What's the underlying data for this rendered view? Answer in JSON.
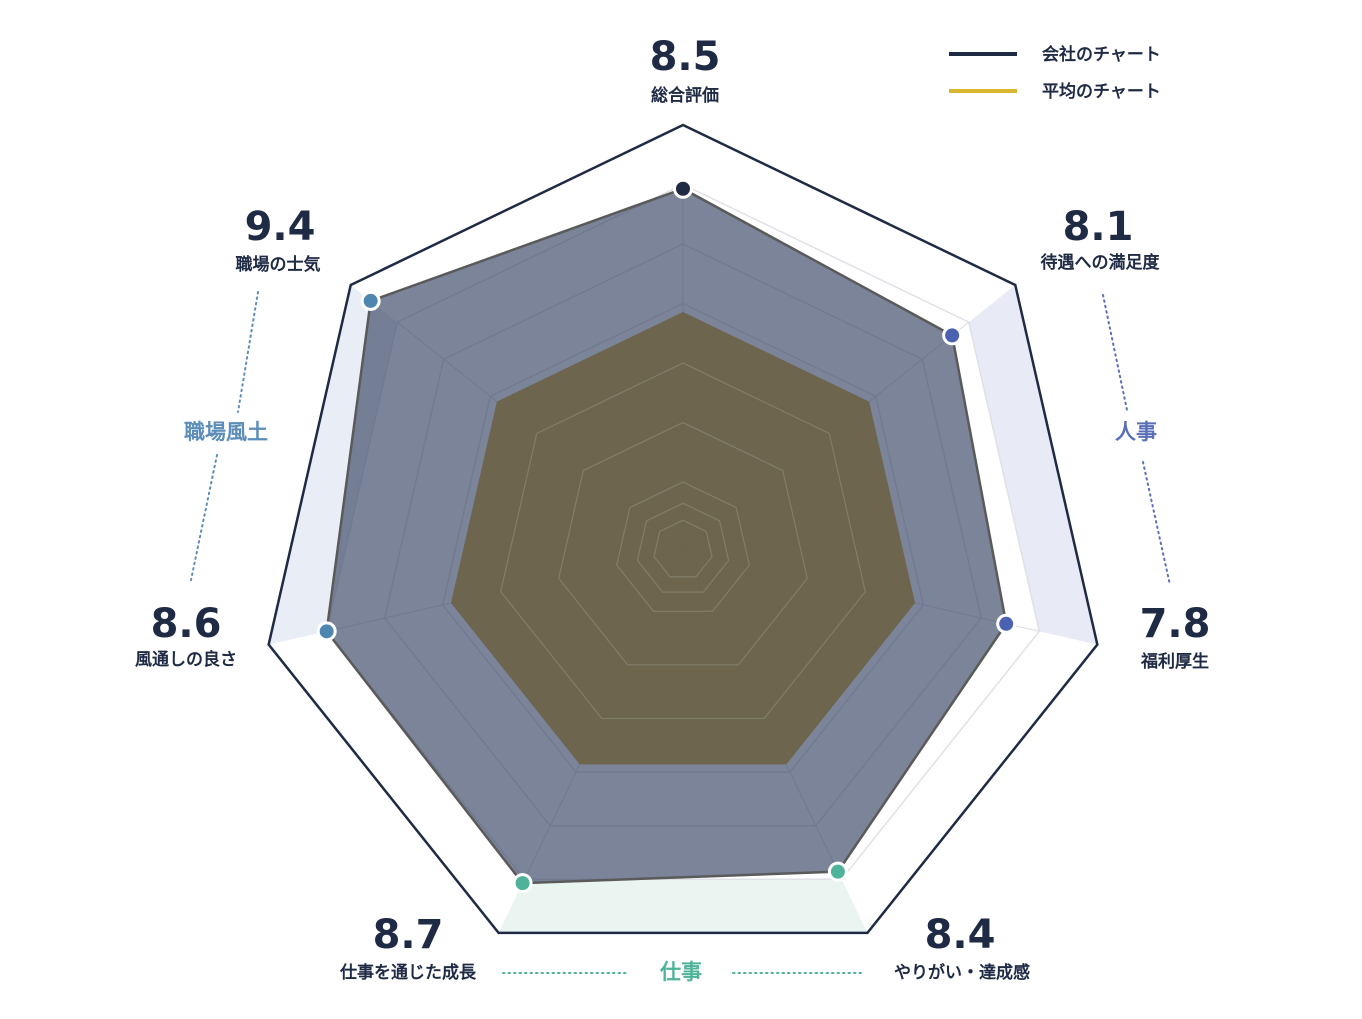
{
  "chart_data": {
    "type": "radar",
    "range": [
      0,
      10
    ],
    "axes": [
      {
        "label": "総合評価",
        "value": 8.5,
        "value_text": "8.5",
        "dot_color": "#1f2a44"
      },
      {
        "label": "待遇への満足度",
        "value": 8.1,
        "value_text": "8.1",
        "dot_color": "#4a62b0"
      },
      {
        "label": "福利厚生",
        "value": 7.8,
        "value_text": "7.8",
        "dot_color": "#4a62b0"
      },
      {
        "label": "やりがい・達成感",
        "value": 8.4,
        "value_text": "8.4",
        "dot_color": "#4fb39a"
      },
      {
        "label": "仕事を通じた成長",
        "value": 8.7,
        "value_text": "8.7",
        "dot_color": "#4fb39a"
      },
      {
        "label": "風通しの良さ",
        "value": 8.6,
        "value_text": "8.6",
        "dot_color": "#4f86b0"
      },
      {
        "label": "職場の士気",
        "value": 9.4,
        "value_text": "9.4",
        "dot_color": "#4f86b0"
      }
    ],
    "series": [
      {
        "name": "会社のチャート",
        "values": [
          8.5,
          8.1,
          7.8,
          8.4,
          8.7,
          8.6,
          9.4
        ],
        "color": "#1f2a44"
      },
      {
        "name": "平均のチャート",
        "values": [
          5.6,
          5.6,
          5.6,
          5.6,
          5.6,
          5.6,
          5.6
        ],
        "color": "#d8b62f"
      }
    ],
    "groups": [
      {
        "label": "職場風土",
        "color": "#5b8db8",
        "axes": [
          5,
          6
        ]
      },
      {
        "label": "人事",
        "color": "#5a6fb8",
        "axes": [
          1,
          2
        ]
      },
      {
        "label": "仕事",
        "color": "#4fb39a",
        "axes": [
          3,
          4
        ]
      }
    ],
    "legend_position": "top-right"
  }
}
